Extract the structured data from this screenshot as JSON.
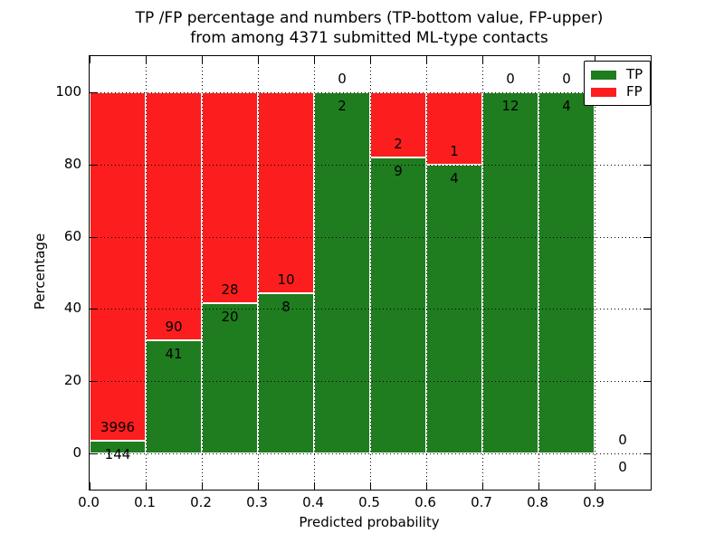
{
  "title_line1": "TP /FP percentage and numbers (TP-bottom value, FP-upper)",
  "title_line2": "from among 4371 submitted ML-type contacts",
  "chart_data": {
    "type": "bar",
    "stacked": true,
    "normalized_to_percent": true,
    "title": "TP /FP percentage and numbers (TP-bottom value, FP-upper) from among 4371 submitted ML-type contacts",
    "xlabel": "Predicted probability",
    "ylabel": "Percentage",
    "xlim": [
      0.0,
      1.0
    ],
    "ylim": [
      -10,
      110
    ],
    "x_tick_labels": [
      "0.0",
      "0.1",
      "0.2",
      "0.3",
      "0.4",
      "0.5",
      "0.6",
      "0.7",
      "0.8",
      "0.9"
    ],
    "x_tick_values": [
      0.0,
      0.1,
      0.2,
      0.3,
      0.4,
      0.5,
      0.6,
      0.7,
      0.8,
      0.9
    ],
    "y_tick_values": [
      0,
      20,
      40,
      60,
      80,
      100
    ],
    "grid": true,
    "grid_style": "dotted",
    "bar_width": 0.1,
    "bin_starts": [
      0.0,
      0.1,
      0.2,
      0.3,
      0.4,
      0.5,
      0.6,
      0.7,
      0.8,
      0.9
    ],
    "series": [
      {
        "name": "TP",
        "color": "#1f7d1f",
        "counts": [
          144,
          41,
          20,
          8,
          2,
          9,
          4,
          12,
          4,
          0
        ]
      },
      {
        "name": "FP",
        "color": "#fc1e1e",
        "counts": [
          3996,
          90,
          28,
          10,
          0,
          2,
          1,
          0,
          0,
          0
        ]
      }
    ],
    "tp_percent_of_bin": [
      3.48,
      31.3,
      41.67,
      44.44,
      100,
      81.82,
      80,
      100,
      100,
      null
    ],
    "total_contacts": 4371,
    "legend_position": "upper right"
  },
  "legend": {
    "entries": [
      {
        "label": "TP",
        "color": "#1f7d1f"
      },
      {
        "label": "FP",
        "color": "#fc1e1e"
      }
    ]
  },
  "colors": {
    "tp_green": "#1f7d1f",
    "fp_red": "#fc1e1e",
    "axis_black": "#000000",
    "background": "#ffffff",
    "bar_edge_white": "#ffffff"
  }
}
